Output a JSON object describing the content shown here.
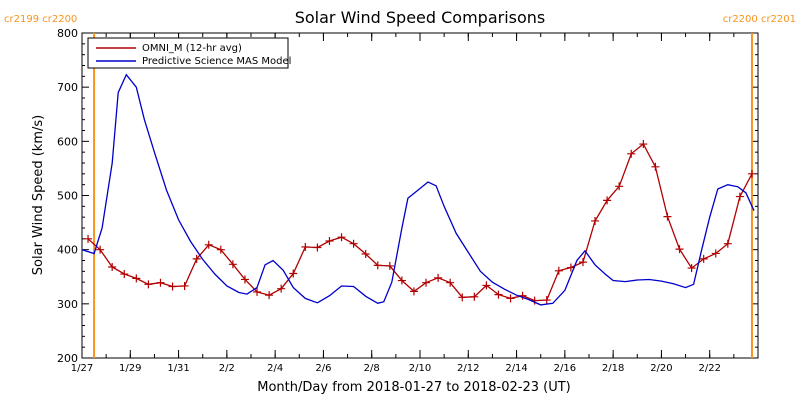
{
  "chart_data": {
    "type": "line",
    "title": "Solar Wind Speed Comparisons",
    "xlabel": "Month/Day from 2018-01-27 to 2018-02-23 (UT)",
    "ylabel": "Solar Wind Speed (km/s)",
    "ylim": [
      200,
      800
    ],
    "xlim": [
      "2018-01-27",
      "2018-02-24"
    ],
    "yticks": [
      200,
      300,
      400,
      500,
      600,
      700,
      800
    ],
    "xtick_labels": [
      "1/27",
      "1/29",
      "1/31",
      "2/2",
      "2/4",
      "2/6",
      "2/8",
      "2/10",
      "2/12",
      "2/14",
      "2/16",
      "2/18",
      "2/20",
      "2/22"
    ],
    "xtick_dates": [
      "2018-01-27",
      "2018-01-29",
      "2018-01-31",
      "2018-02-02",
      "2018-02-04",
      "2018-02-06",
      "2018-02-08",
      "2018-02-10",
      "2018-02-12",
      "2018-02-14",
      "2018-02-16",
      "2018-02-18",
      "2018-02-20",
      "2018-02-22"
    ],
    "grid": false,
    "legend": "top-left",
    "carrington_markers": [
      {
        "label_left": "cr2199",
        "label_right": "cr2200",
        "date": "2018-01-27 12:00"
      },
      {
        "label_left": "cr2200",
        "label_right": "cr2201",
        "date": "2018-02-23 18:00"
      }
    ],
    "series": [
      {
        "name": "OMNI_M (12-hr avg)",
        "color": "#b00000",
        "markers": "plus",
        "points": [
          [
            "2018-01-27 06:00",
            420
          ],
          [
            "2018-01-27 18:00",
            400
          ],
          [
            "2018-01-28 06:00",
            368
          ],
          [
            "2018-01-28 18:00",
            355
          ],
          [
            "2018-01-29 06:00",
            347
          ],
          [
            "2018-01-29 18:00",
            336
          ],
          [
            "2018-01-30 06:00",
            339
          ],
          [
            "2018-01-30 18:00",
            332
          ],
          [
            "2018-01-31 06:00",
            333
          ],
          [
            "2018-01-31 18:00",
            383
          ],
          [
            "2018-02-01 06:00",
            409
          ],
          [
            "2018-02-01 18:00",
            400
          ],
          [
            "2018-02-02 06:00",
            373
          ],
          [
            "2018-02-02 18:00",
            345
          ],
          [
            "2018-02-03 06:00",
            322
          ],
          [
            "2018-02-03 18:00",
            316
          ],
          [
            "2018-02-04 06:00",
            328
          ],
          [
            "2018-02-04 18:00",
            356
          ],
          [
            "2018-02-05 06:00",
            405
          ],
          [
            "2018-02-05 18:00",
            404
          ],
          [
            "2018-02-06 06:00",
            416
          ],
          [
            "2018-02-06 18:00",
            423
          ],
          [
            "2018-02-07 06:00",
            411
          ],
          [
            "2018-02-07 18:00",
            392
          ],
          [
            "2018-02-08 06:00",
            371
          ],
          [
            "2018-02-08 18:00",
            370
          ],
          [
            "2018-02-09 06:00",
            343
          ],
          [
            "2018-02-09 18:00",
            323
          ],
          [
            "2018-02-10 06:00",
            339
          ],
          [
            "2018-02-10 18:00",
            348
          ],
          [
            "2018-02-11 06:00",
            339
          ],
          [
            "2018-02-11 18:00",
            312
          ],
          [
            "2018-02-12 06:00",
            313
          ],
          [
            "2018-02-12 18:00",
            334
          ],
          [
            "2018-02-13 06:00",
            317
          ],
          [
            "2018-02-13 18:00",
            310
          ],
          [
            "2018-02-14 06:00",
            315
          ],
          [
            "2018-02-14 18:00",
            306
          ],
          [
            "2018-02-15 06:00",
            307
          ],
          [
            "2018-02-15 18:00",
            361
          ],
          [
            "2018-02-16 06:00",
            367
          ],
          [
            "2018-02-16 18:00",
            377
          ],
          [
            "2018-02-17 06:00",
            453
          ],
          [
            "2018-02-17 18:00",
            491
          ],
          [
            "2018-02-18 06:00",
            517
          ],
          [
            "2018-02-18 18:00",
            577
          ],
          [
            "2018-02-19 06:00",
            595
          ],
          [
            "2018-02-19 18:00",
            553
          ],
          [
            "2018-02-20 06:00",
            461
          ],
          [
            "2018-02-20 18:00",
            401
          ],
          [
            "2018-02-21 06:00",
            366
          ],
          [
            "2018-02-21 18:00",
            383
          ],
          [
            "2018-02-22 06:00",
            393
          ],
          [
            "2018-02-22 18:00",
            411
          ],
          [
            "2018-02-23 06:00",
            498
          ],
          [
            "2018-02-23 18:00",
            540
          ]
        ]
      },
      {
        "name": "Predictive Science MAS Model",
        "color": "#0000cc",
        "markers": "none",
        "points": [
          [
            "2018-01-27 00:00",
            400
          ],
          [
            "2018-01-27 12:00",
            393
          ],
          [
            "2018-01-27 20:00",
            440
          ],
          [
            "2018-01-28 06:00",
            560
          ],
          [
            "2018-01-28 12:00",
            690
          ],
          [
            "2018-01-28 20:00",
            723
          ],
          [
            "2018-01-29 06:00",
            700
          ],
          [
            "2018-01-29 14:00",
            640
          ],
          [
            "2018-01-30 00:00",
            580
          ],
          [
            "2018-01-30 12:00",
            510
          ],
          [
            "2018-01-31 00:00",
            455
          ],
          [
            "2018-01-31 12:00",
            415
          ],
          [
            "2018-02-01 00:00",
            382
          ],
          [
            "2018-02-01 12:00",
            355
          ],
          [
            "2018-02-02 00:00",
            333
          ],
          [
            "2018-02-02 12:00",
            321
          ],
          [
            "2018-02-02 20:00",
            318
          ],
          [
            "2018-02-03 06:00",
            330
          ],
          [
            "2018-02-03 14:00",
            372
          ],
          [
            "2018-02-03 22:00",
            380
          ],
          [
            "2018-02-04 08:00",
            362
          ],
          [
            "2018-02-04 18:00",
            330
          ],
          [
            "2018-02-05 06:00",
            310
          ],
          [
            "2018-02-05 18:00",
            302
          ],
          [
            "2018-02-06 06:00",
            315
          ],
          [
            "2018-02-06 18:00",
            333
          ],
          [
            "2018-02-07 06:00",
            332
          ],
          [
            "2018-02-07 18:00",
            314
          ],
          [
            "2018-02-08 06:00",
            301
          ],
          [
            "2018-02-08 12:00",
            304
          ],
          [
            "2018-02-08 20:00",
            340
          ],
          [
            "2018-02-09 06:00",
            440
          ],
          [
            "2018-02-09 12:00",
            495
          ],
          [
            "2018-02-09 22:00",
            510
          ],
          [
            "2018-02-10 08:00",
            525
          ],
          [
            "2018-02-10 16:00",
            518
          ],
          [
            "2018-02-11 00:00",
            480
          ],
          [
            "2018-02-11 12:00",
            430
          ],
          [
            "2018-02-12 00:00",
            395
          ],
          [
            "2018-02-12 12:00",
            360
          ],
          [
            "2018-02-13 00:00",
            340
          ],
          [
            "2018-02-13 12:00",
            327
          ],
          [
            "2018-02-14 00:00",
            316
          ],
          [
            "2018-02-14 12:00",
            308
          ],
          [
            "2018-02-15 00:00",
            298
          ],
          [
            "2018-02-15 12:00",
            301
          ],
          [
            "2018-02-16 00:00",
            325
          ],
          [
            "2018-02-16 12:00",
            380
          ],
          [
            "2018-02-16 20:00",
            398
          ],
          [
            "2018-02-17 06:00",
            372
          ],
          [
            "2018-02-17 16:00",
            355
          ],
          [
            "2018-02-18 00:00",
            343
          ],
          [
            "2018-02-18 12:00",
            341
          ],
          [
            "2018-02-19 00:00",
            344
          ],
          [
            "2018-02-19 12:00",
            345
          ],
          [
            "2018-02-20 00:00",
            342
          ],
          [
            "2018-02-20 12:00",
            337
          ],
          [
            "2018-02-21 00:00",
            330
          ],
          [
            "2018-02-21 08:00",
            336
          ],
          [
            "2018-02-21 16:00",
            400
          ],
          [
            "2018-02-22 00:00",
            460
          ],
          [
            "2018-02-22 08:00",
            512
          ],
          [
            "2018-02-22 18:00",
            520
          ],
          [
            "2018-02-23 04:00",
            516
          ],
          [
            "2018-02-23 12:00",
            505
          ],
          [
            "2018-02-23 20:00",
            472
          ]
        ]
      }
    ]
  }
}
